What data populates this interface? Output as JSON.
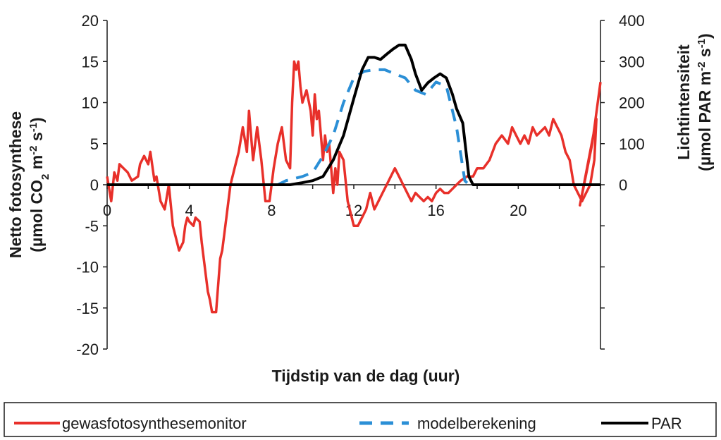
{
  "chart_data": {
    "type": "line",
    "xlabel": "Tijdstip van de dag (uur)",
    "ylabel": [
      "Netto fotosynthese",
      "(µmol CO",
      "2",
      " m",
      "-2",
      " s",
      "-1",
      ")"
    ],
    "y2label": [
      "Lichtintensiteit",
      "(µmol PAR m",
      "-2",
      " s",
      "-1",
      ")"
    ],
    "xlim": [
      0,
      24
    ],
    "ylim": [
      -20,
      20
    ],
    "y2lim": [
      -400,
      400
    ],
    "xticks": [
      "0",
      "4",
      "8",
      "12",
      "16",
      "20"
    ],
    "yticks": [
      "20",
      "15",
      "10",
      "5",
      "0",
      "-5",
      "-10",
      "-15",
      "-20"
    ],
    "y2ticks": [
      "400",
      "300",
      "200",
      "100",
      "0"
    ],
    "colors": {
      "gewas": "#e8302a",
      "model": "#2b8fd6",
      "par": "#000000"
    },
    "series": [
      {
        "name": "gewasfotosynthesemonitor",
        "axis": "left",
        "x": [
          0,
          0.2,
          0.35,
          0.5,
          0.6,
          0.8,
          1.0,
          1.2,
          1.5,
          1.6,
          1.8,
          2.0,
          2.1,
          2.3,
          2.4,
          2.6,
          2.8,
          3.0,
          3.2,
          3.4,
          3.5,
          3.7,
          3.8,
          3.9,
          4.0,
          4.2,
          4.3,
          4.5,
          4.6,
          4.8,
          4.9,
          5.0,
          5.1,
          5.3,
          5.5,
          5.6,
          5.8,
          6.0,
          6.2,
          6.4,
          6.6,
          6.8,
          6.9,
          7.0,
          7.1,
          7.3,
          7.5,
          7.7,
          7.9,
          8.1,
          8.3,
          8.5,
          8.7,
          8.9,
          9.0,
          9.1,
          9.2,
          9.3,
          9.4,
          9.5,
          9.7,
          9.9,
          10.0,
          10.1,
          10.2,
          10.3,
          10.5,
          10.6,
          10.7,
          10.8,
          11.0,
          11.1,
          11.2,
          11.3,
          11.5,
          11.7,
          11.9,
          12.0,
          12.2,
          12.4,
          12.6,
          12.8,
          13.0,
          13.2,
          13.4,
          13.6,
          13.8,
          14.0,
          14.2,
          14.4,
          14.6,
          14.8,
          15.0,
          15.2,
          15.4,
          15.6,
          15.8,
          16.0,
          16.2,
          16.4,
          16.6,
          16.8,
          17.0,
          17.2,
          17.5,
          17.8,
          18.0,
          18.3,
          18.6,
          18.9,
          19.2,
          19.5,
          19.7,
          19.9,
          20.1,
          20.3,
          20.5,
          20.7,
          20.9,
          21.1,
          21.3,
          21.5,
          21.7,
          21.9,
          22.1,
          22.3,
          22.5,
          22.7,
          22.9,
          23.1,
          23.3,
          23.5,
          23.7,
          23.8
        ],
        "y": [
          1,
          -2,
          1.5,
          0.5,
          2.5,
          2,
          1.5,
          0.5,
          1,
          2.5,
          3.5,
          2.5,
          4,
          0.5,
          1,
          -2,
          -3,
          0,
          -5,
          -7,
          -8,
          -7,
          -5,
          -4,
          -4.5,
          -5,
          -4,
          -4.5,
          -7,
          -11,
          -13,
          -14,
          -15.5,
          -15.5,
          -9,
          -8,
          -4,
          0,
          2,
          4,
          7,
          4,
          9,
          6,
          3,
          7,
          3,
          -2,
          -2,
          2,
          5,
          7,
          3,
          2,
          10,
          15,
          14,
          15,
          12,
          10,
          11.5,
          9,
          6,
          11,
          8,
          9,
          3,
          6,
          4,
          5,
          -1,
          2,
          0,
          4,
          3,
          -2,
          -4,
          -5,
          -5,
          -4,
          -3,
          -1,
          -3,
          -2,
          -1,
          0,
          1,
          2,
          1,
          0,
          -1,
          -2,
          -1,
          -1.5,
          -2,
          -1.5,
          -2,
          -1,
          -0.5,
          -1,
          -1,
          -0.5,
          0,
          0.5,
          1,
          1,
          2,
          2,
          3,
          5,
          6,
          5,
          7,
          6,
          5,
          6,
          5,
          7,
          6,
          6.5,
          7,
          6,
          8,
          7,
          6,
          4,
          3,
          0,
          -1,
          -2,
          -1,
          0,
          3,
          8
        ],
        "note_points_after": [
          [
            23.0,
            -2.5
          ],
          [
            23.2,
            0
          ],
          [
            23.6,
            5
          ],
          [
            24.0,
            12.5
          ]
        ]
      },
      {
        "name": "modelberekening",
        "axis": "left",
        "x": [
          0,
          8.3,
          8.7,
          9.5,
          10.0,
          10.5,
          11.0,
          11.5,
          12.0,
          12.5,
          13.0,
          13.5,
          14.0,
          14.5,
          15.0,
          15.5,
          16.0,
          16.5,
          17.0,
          17.4,
          17.6,
          17.8,
          24
        ],
        "y": [
          0,
          0,
          0.5,
          1,
          1.5,
          3.5,
          6,
          10,
          13,
          13.8,
          14,
          14,
          13.5,
          13,
          11.5,
          11,
          12.5,
          12,
          7,
          0.5,
          0,
          0,
          0
        ]
      },
      {
        "name": "PAR",
        "axis": "right",
        "x": [
          0,
          8.9,
          9.5,
          10.0,
          10.5,
          11.0,
          11.5,
          12.0,
          12.4,
          12.7,
          13.0,
          13.3,
          13.6,
          13.9,
          14.2,
          14.5,
          14.8,
          15.0,
          15.3,
          15.6,
          15.9,
          16.2,
          16.5,
          16.8,
          17.0,
          17.3,
          17.6,
          17.8,
          24
        ],
        "y": [
          0,
          0,
          5,
          10,
          20,
          60,
          120,
          210,
          280,
          310,
          310,
          305,
          318,
          330,
          340,
          340,
          305,
          270,
          230,
          248,
          260,
          270,
          260,
          220,
          185,
          150,
          20,
          0,
          0
        ]
      }
    ],
    "legend": {
      "position": "bottom",
      "items": [
        "gewasfotosynthesemonitor",
        "modelberekening",
        "PAR"
      ]
    }
  }
}
